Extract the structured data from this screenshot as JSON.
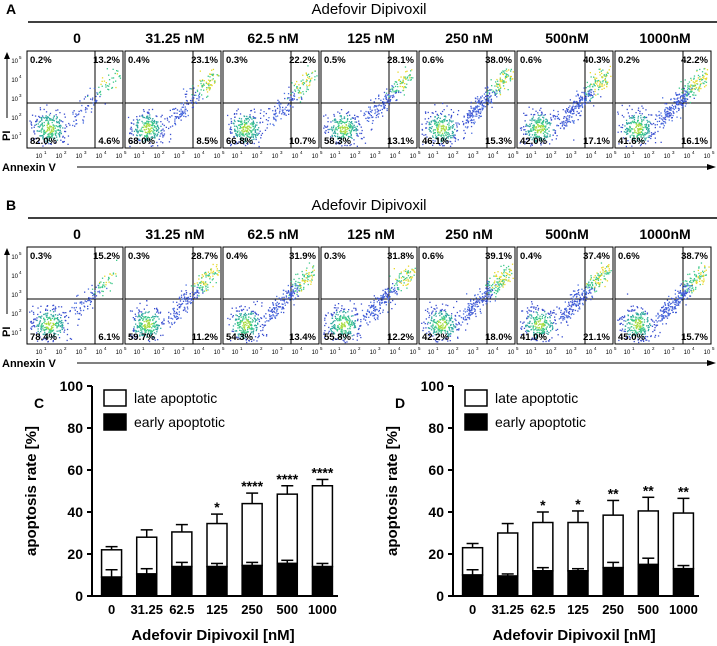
{
  "flow": {
    "panels": [
      {
        "letter": "A",
        "drug": "Adefovir Dipivoxil",
        "concentrations": [
          "0",
          "31.25 nM",
          "62.5 nM",
          "125 nM",
          "250 nM",
          "500nM",
          "1000nM"
        ],
        "quadrants": [
          {
            "ul": "0.2%",
            "ur": "13.2%",
            "ll": "82.0%",
            "lr": "4.6%"
          },
          {
            "ul": "0.4%",
            "ur": "23.1%",
            "ll": "68.0%",
            "lr": "8.5%"
          },
          {
            "ul": "0.3%",
            "ur": "22.2%",
            "ll": "66.8%",
            "lr": "10.7%"
          },
          {
            "ul": "0.5%",
            "ur": "28.1%",
            "ll": "58.3%",
            "lr": "13.1%"
          },
          {
            "ul": "0.6%",
            "ur": "38.0%",
            "ll": "46.1%",
            "lr": "15.3%"
          },
          {
            "ul": "0.6%",
            "ur": "40.3%",
            "ll": "42.0%",
            "lr": "17.1%"
          },
          {
            "ul": "0.2%",
            "ur": "42.2%",
            "ll": "41.6%",
            "lr": "16.1%"
          }
        ],
        "ylabel": "PI",
        "xlabel": "Annexin V"
      },
      {
        "letter": "B",
        "drug": "Adefovir Dipivoxil",
        "concentrations": [
          "0",
          "31.25 nM",
          "62.5 nM",
          "125 nM",
          "250 nM",
          "500nM",
          "1000nM"
        ],
        "quadrants": [
          {
            "ul": "0.3%",
            "ur": "15.2%",
            "ll": "78.4%",
            "lr": "6.1%"
          },
          {
            "ul": "0.3%",
            "ur": "28.7%",
            "ll": "59.7%",
            "lr": "11.2%"
          },
          {
            "ul": "0.4%",
            "ur": "31.9%",
            "ll": "54.3%",
            "lr": "13.4%"
          },
          {
            "ul": "0.3%",
            "ur": "31.8%",
            "ll": "55.8%",
            "lr": "12.2%"
          },
          {
            "ul": "0.6%",
            "ur": "39.1%",
            "ll": "42.2%",
            "lr": "18.0%"
          },
          {
            "ul": "0.4%",
            "ur": "37.4%",
            "ll": "41.0%",
            "lr": "21.1%"
          },
          {
            "ul": "0.6%",
            "ur": "38.7%",
            "ll": "45.0%",
            "lr": "15.7%"
          }
        ],
        "ylabel": "PI",
        "xlabel": "Annexin V"
      }
    ],
    "yticks": [
      "10",
      "10",
      "10",
      "10",
      "10"
    ],
    "ytick_exps": [
      "1",
      "2",
      "3",
      "4",
      "5"
    ],
    "xticks": [
      "10",
      "10",
      "10",
      "10",
      "10"
    ],
    "xtick_exps": [
      "1",
      "2",
      "3",
      "4",
      "5"
    ]
  },
  "chart_data": [
    {
      "letter": "C",
      "type": "bar",
      "stacked": true,
      "categories": [
        "0",
        "31.25",
        "62.5",
        "125",
        "250",
        "500",
        "1000"
      ],
      "series": [
        {
          "name": "early apoptotic",
          "fill": "#000000",
          "values": [
            9,
            10.5,
            14,
            14,
            14.5,
            15.5,
            14
          ]
        },
        {
          "name": "late apoptotic",
          "fill": "#ffffff",
          "values": [
            13,
            17.5,
            16.5,
            20.5,
            29.5,
            33,
            38.5
          ]
        }
      ],
      "totals": [
        22,
        28,
        30.5,
        34.5,
        44,
        48.5,
        52.5
      ],
      "errors_total": [
        1.5,
        3.5,
        3.5,
        4.5,
        5,
        4,
        3
      ],
      "errors_early": [
        3.5,
        2.5,
        2,
        1.5,
        1.5,
        1.5,
        1.5
      ],
      "significance": [
        "",
        "",
        "",
        "*",
        "****",
        "****",
        "****"
      ],
      "yticks": [
        "0",
        "20",
        "40",
        "60",
        "80",
        "100"
      ],
      "ylim": [
        0,
        100
      ],
      "ylabel": "apoptosis rate [%]",
      "xlabel": "Adefovir Dipivoxil [nM]",
      "legend": [
        "late apoptotic",
        "early apoptotic"
      ],
      "legend_position": "top-left"
    },
    {
      "letter": "D",
      "type": "bar",
      "stacked": true,
      "categories": [
        "0",
        "31.25",
        "62.5",
        "125",
        "250",
        "500",
        "1000"
      ],
      "series": [
        {
          "name": "early apoptotic",
          "fill": "#000000",
          "values": [
            10,
            9.5,
            12,
            12,
            13.5,
            15,
            13
          ]
        },
        {
          "name": "late apoptotic",
          "fill": "#ffffff",
          "values": [
            13,
            20.5,
            23,
            23,
            25,
            25.5,
            26.5
          ]
        }
      ],
      "totals": [
        23,
        30,
        35,
        35,
        38.5,
        40.5,
        39.5
      ],
      "errors_total": [
        2,
        4.5,
        5,
        5.5,
        7,
        6.5,
        7
      ],
      "errors_early": [
        2.5,
        1,
        1.5,
        1,
        2.5,
        3,
        1.5
      ],
      "significance": [
        "",
        "",
        "*",
        "*",
        "**",
        "**",
        "**"
      ],
      "yticks": [
        "0",
        "20",
        "40",
        "60",
        "80",
        "100"
      ],
      "ylim": [
        0,
        100
      ],
      "ylabel": "apoptosis rate [%]",
      "xlabel": "Adefovir Dipivoxil [nM]",
      "legend": [
        "late apoptotic",
        "early apoptotic"
      ],
      "legend_position": "top-left"
    }
  ],
  "colors": {
    "axis": "#000000",
    "dot_cool": "#3a4fd0",
    "dot_mid": "#2fa7a0",
    "dot_hot": "#e8d92a"
  }
}
